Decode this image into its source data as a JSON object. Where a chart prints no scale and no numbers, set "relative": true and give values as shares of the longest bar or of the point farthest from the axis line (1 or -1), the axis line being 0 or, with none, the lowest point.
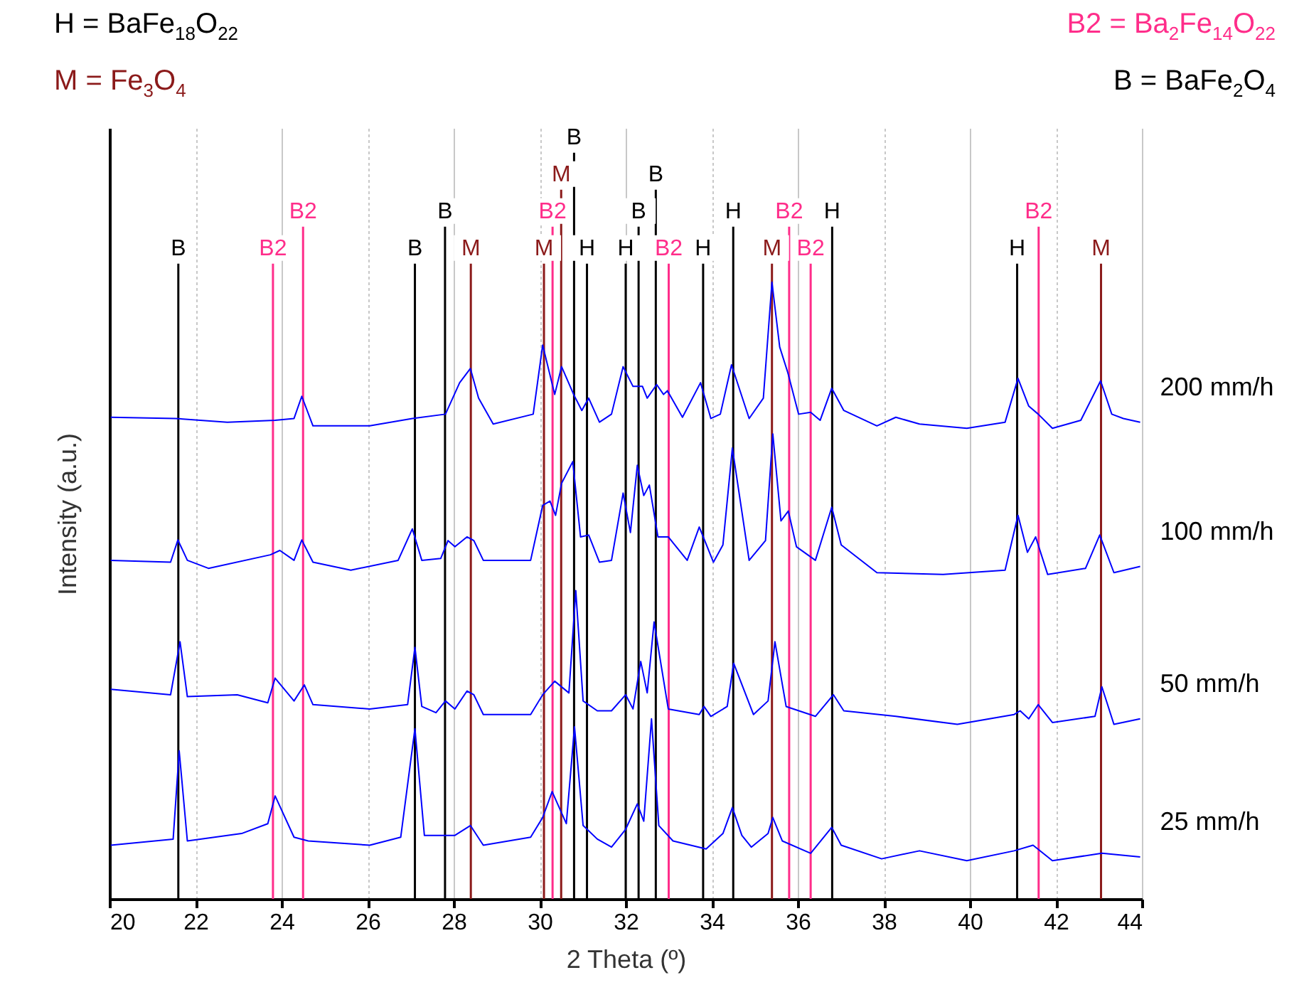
{
  "chart_data": {
    "type": "line",
    "relative": true,
    "xlabel": "2 Theta (º)",
    "ylabel": "Intensity (a.u.)",
    "xlim": [
      20,
      44
    ],
    "xticks": [
      20,
      22,
      24,
      26,
      28,
      30,
      32,
      34,
      36,
      38,
      40,
      42,
      44
    ],
    "grid": "x",
    "legend": false,
    "annotations": [
      "H = BaFe$_{18}$O$_{22}$",
      "M = Fe$_{3}$O$_{4}$",
      "B2 = Ba$_{2}$Fe$_{14}$O$_{22}$",
      "B = BaFe$_{2}$O$_{4}$"
    ],
    "series": [
      {
        "name": "200 mm/h",
        "color": "#0000ff",
        "x": [
          20.03,
          21.53,
          22.74,
          23.85,
          24.29,
          24.47,
          24.73,
          26.05,
          27.04,
          27.81,
          28.14,
          28.39,
          28.58,
          28.92,
          29.85,
          30.07,
          30.35,
          30.51,
          30.79,
          30.98,
          31.14,
          31.39,
          31.67,
          31.94,
          32.17,
          32.39,
          32.5,
          32.72,
          32.88,
          32.97,
          33.32,
          33.74,
          33.98,
          34.2,
          34.46,
          34.87,
          35.2,
          35.4,
          35.58,
          35.77,
          36.02,
          36.3,
          36.52,
          36.79,
          37.07,
          37.84,
          38.28,
          38.83,
          39.93,
          40.82,
          41.12,
          41.37,
          41.59,
          41.92,
          42.58,
          43.04,
          43.3,
          43.57,
          43.96
        ],
        "values": [
          0.781,
          0.779,
          0.773,
          0.776,
          0.779,
          0.815,
          0.767,
          0.767,
          0.779,
          0.786,
          0.837,
          0.86,
          0.812,
          0.77,
          0.786,
          0.898,
          0.818,
          0.863,
          0.818,
          0.792,
          0.812,
          0.773,
          0.786,
          0.863,
          0.831,
          0.831,
          0.812,
          0.834,
          0.818,
          0.824,
          0.781,
          0.837,
          0.779,
          0.786,
          0.866,
          0.779,
          0.812,
          1.0,
          0.895,
          0.853,
          0.786,
          0.789,
          0.776,
          0.828,
          0.792,
          0.767,
          0.781,
          0.77,
          0.763,
          0.773,
          0.844,
          0.799,
          0.786,
          0.763,
          0.776,
          0.84,
          0.786,
          0.779,
          0.773
        ]
      },
      {
        "name": "100 mm/h",
        "color": "#0000ff",
        "x": [
          20.03,
          21.42,
          21.59,
          21.81,
          22.3,
          23.74,
          23.96,
          24.29,
          24.47,
          24.73,
          25.61,
          26.71,
          27.04,
          27.26,
          27.7,
          27.87,
          28.03,
          28.31,
          28.47,
          28.69,
          29.79,
          30.07,
          30.24,
          30.37,
          30.51,
          30.77,
          30.95,
          31.14,
          31.39,
          31.67,
          31.94,
          32.11,
          32.27,
          32.42,
          32.55,
          32.75,
          32.99,
          33.43,
          33.71,
          34.04,
          34.26,
          34.48,
          34.87,
          35.25,
          35.42,
          35.61,
          35.78,
          35.97,
          36.41,
          36.79,
          37.01,
          37.84,
          39.38,
          40.82,
          41.12,
          41.34,
          41.53,
          41.81,
          42.69,
          43.02,
          43.35,
          43.96
        ],
        "values": [
          0.549,
          0.546,
          0.582,
          0.549,
          0.536,
          0.558,
          0.565,
          0.549,
          0.582,
          0.546,
          0.533,
          0.549,
          0.6,
          0.549,
          0.552,
          0.581,
          0.571,
          0.587,
          0.581,
          0.549,
          0.549,
          0.638,
          0.645,
          0.622,
          0.674,
          0.709,
          0.587,
          0.59,
          0.546,
          0.549,
          0.658,
          0.594,
          0.703,
          0.654,
          0.671,
          0.587,
          0.587,
          0.549,
          0.603,
          0.546,
          0.574,
          0.731,
          0.549,
          0.581,
          0.754,
          0.613,
          0.629,
          0.571,
          0.549,
          0.635,
          0.574,
          0.529,
          0.526,
          0.533,
          0.622,
          0.562,
          0.587,
          0.526,
          0.536,
          0.59,
          0.529,
          0.539
        ]
      },
      {
        "name": "50 mm/h",
        "color": "#0000ff",
        "x": [
          20.03,
          21.42,
          21.64,
          21.81,
          22.97,
          23.68,
          23.85,
          24.29,
          24.53,
          24.73,
          26.05,
          26.93,
          27.1,
          27.26,
          27.59,
          27.81,
          28.03,
          28.31,
          28.47,
          28.69,
          29.79,
          30.07,
          30.35,
          30.68,
          30.84,
          31.01,
          31.34,
          31.67,
          32.0,
          32.17,
          32.35,
          32.5,
          32.66,
          32.99,
          33.71,
          33.82,
          33.98,
          34.36,
          34.51,
          34.97,
          35.31,
          35.47,
          35.73,
          36.41,
          36.83,
          37.07,
          38.28,
          39.71,
          41.03,
          41.17,
          41.37,
          41.59,
          41.92,
          42.91,
          43.07,
          43.35,
          43.96
        ],
        "values": [
          0.34,
          0.331,
          0.417,
          0.328,
          0.331,
          0.318,
          0.358,
          0.321,
          0.347,
          0.315,
          0.308,
          0.315,
          0.408,
          0.312,
          0.302,
          0.321,
          0.308,
          0.337,
          0.331,
          0.299,
          0.299,
          0.331,
          0.353,
          0.334,
          0.5,
          0.321,
          0.305,
          0.305,
          0.331,
          0.308,
          0.385,
          0.334,
          0.449,
          0.308,
          0.299,
          0.312,
          0.296,
          0.312,
          0.382,
          0.299,
          0.321,
          0.417,
          0.312,
          0.296,
          0.331,
          0.305,
          0.296,
          0.283,
          0.299,
          0.305,
          0.292,
          0.315,
          0.286,
          0.296,
          0.344,
          0.283,
          0.292
        ]
      },
      {
        "name": "25 mm/h",
        "color": "#0000ff",
        "x": [
          20.03,
          21.48,
          21.62,
          21.81,
          23.07,
          23.68,
          23.85,
          24.29,
          24.62,
          26.05,
          26.77,
          27.1,
          27.32,
          28.03,
          28.39,
          28.69,
          29.79,
          30.07,
          30.29,
          30.62,
          30.81,
          31.01,
          31.34,
          31.67,
          32.0,
          32.27,
          32.42,
          32.6,
          32.77,
          33.1,
          33.87,
          34.26,
          34.48,
          34.7,
          34.92,
          35.31,
          35.42,
          35.64,
          36.3,
          36.79,
          37.01,
          37.95,
          38.83,
          39.93,
          41.03,
          41.47,
          41.92,
          43.07,
          43.96
        ],
        "values": [
          0.087,
          0.097,
          0.24,
          0.094,
          0.106,
          0.122,
          0.167,
          0.1,
          0.094,
          0.087,
          0.1,
          0.276,
          0.103,
          0.103,
          0.119,
          0.087,
          0.1,
          0.132,
          0.174,
          0.122,
          0.279,
          0.119,
          0.097,
          0.084,
          0.113,
          0.154,
          0.126,
          0.292,
          0.119,
          0.094,
          0.081,
          0.106,
          0.148,
          0.103,
          0.084,
          0.106,
          0.132,
          0.094,
          0.074,
          0.116,
          0.087,
          0.065,
          0.078,
          0.062,
          0.078,
          0.087,
          0.062,
          0.074,
          0.068
        ]
      }
    ],
    "ref_lines": [
      {
        "axis": "x",
        "value": 21.6,
        "label": "B",
        "color": "#000000"
      },
      {
        "axis": "x",
        "value": 23.8,
        "label": "B2",
        "color": "#ff2d8a"
      },
      {
        "axis": "x",
        "value": 24.5,
        "label": "B2",
        "color": "#ff2d8a"
      },
      {
        "axis": "x",
        "value": 27.1,
        "label": "B",
        "color": "#000000"
      },
      {
        "axis": "x",
        "value": 27.8,
        "label": "B",
        "color": "#000000"
      },
      {
        "axis": "x",
        "value": 28.4,
        "label": "M",
        "color": "#8b1a1a"
      },
      {
        "axis": "x",
        "value": 30.1,
        "label": "M",
        "color": "#8b1a1a"
      },
      {
        "axis": "x",
        "value": 30.3,
        "label": "B2",
        "color": "#ff2d8a"
      },
      {
        "axis": "x",
        "value": 30.5,
        "label": "M",
        "color": "#8b1a1a"
      },
      {
        "axis": "x",
        "value": 30.8,
        "label": "B",
        "color": "#000000"
      },
      {
        "axis": "x",
        "value": 31.1,
        "label": "H",
        "color": "#000000"
      },
      {
        "axis": "x",
        "value": 32.0,
        "label": "H",
        "color": "#000000"
      },
      {
        "axis": "x",
        "value": 32.3,
        "label": "B",
        "color": "#000000"
      },
      {
        "axis": "x",
        "value": 32.7,
        "label": "B",
        "color": "#000000"
      },
      {
        "axis": "x",
        "value": 33.0,
        "label": "B2",
        "color": "#ff2d8a"
      },
      {
        "axis": "x",
        "value": 33.8,
        "label": "H",
        "color": "#000000"
      },
      {
        "axis": "x",
        "value": 34.5,
        "label": "H",
        "color": "#000000"
      },
      {
        "axis": "x",
        "value": 35.4,
        "label": "M",
        "color": "#8b1a1a"
      },
      {
        "axis": "x",
        "value": 35.8,
        "label": "B2",
        "color": "#ff2d8a"
      },
      {
        "axis": "x",
        "value": 36.3,
        "label": "B2",
        "color": "#ff2d8a"
      },
      {
        "axis": "x",
        "value": 36.8,
        "label": "H",
        "color": "#000000"
      },
      {
        "axis": "x",
        "value": 41.1,
        "label": "H",
        "color": "#000000"
      },
      {
        "axis": "x",
        "value": 41.6,
        "label": "B2",
        "color": "#ff2d8a"
      },
      {
        "axis": "x",
        "value": 43.05,
        "label": "M",
        "color": "#8b1a1a"
      }
    ]
  }
}
